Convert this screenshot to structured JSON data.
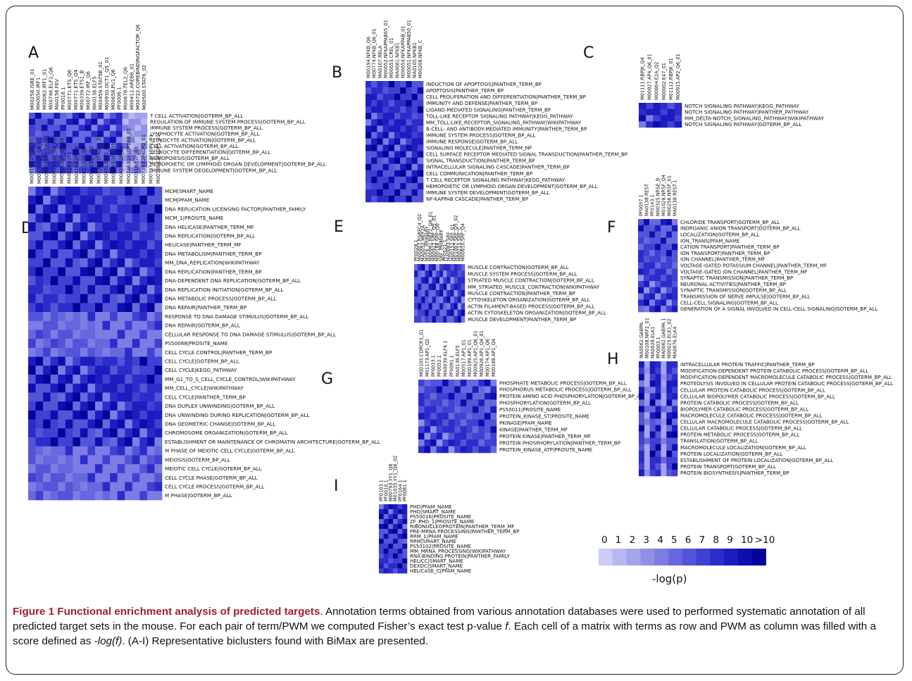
{
  "figure": {
    "caption_title": "Figure 1 Functional enrichment analysis of predicted targets",
    "caption_body_1": "Annotation terms obtained from various annotation databases were used to performed systematic annotation of all predicted target sets in the mouse. For each pair of term/PWM we computed Fisher’s exact test p-value ",
    "caption_f1": "f",
    "caption_body_2": ". Each cell of a matrix with terms as row and PWM as column was filled with a score defined as ",
    "caption_f2": "-log(f)",
    "caption_body_3": ". (A-I) Representative biclusters found with BiMax are presented."
  },
  "legend": {
    "ticks": [
      "0",
      "1",
      "2",
      "3",
      "4",
      "5",
      "6",
      "7",
      "8",
      "9",
      "10",
      ">10"
    ],
    "label": "-log(p)",
    "colors": [
      "#ccccf4",
      "#b8b8f0",
      "#a4a4ec",
      "#9090e8",
      "#7c7ce4",
      "#6868de",
      "#5454d8",
      "#4040d2",
      "#2c2ccb",
      "#1c1cc0",
      "#0e0eb0",
      "#04049c"
    ]
  },
  "chart_data": [
    {
      "type": "heatmap",
      "panel": "A",
      "columns": [
        "M00258.ISRE_01",
        "MA0050.IRF1",
        "M00062.IRF1_01",
        "M00746.ELF1_Q6",
        "MA0156.FEV",
        "PF0016.1",
        "M00771.ETS_Q6",
        "M00771.ETS_Q4",
        "M00339.ETS1_B",
        "M00772.IRF_Q6",
        "MA0136.ELF5",
        "M00459.STAT5B_01",
        "M00930.OCT1_Q5_01",
        "M00658.PU1_Q6",
        "PF0006.1",
        "M00678.TEL2_Q6",
        "M00412.AREB6_01",
        "M00722.COREBINDINGFACTOR_Q6",
        "M00500.STAT6_02"
      ],
      "rows": [
        "T CELL ACTIVATION|GOTERM_BP_ALL",
        "REGULATION OF IMMUNE SYSTEM PROCESS|GOTERM_BP_ALL",
        "IMMUNE SYSTEM PROCESS|GOTERM_BP_ALL",
        "LYMPHOCYTE ACTIVATION|GOTERM_BP_ALL",
        "LEUKOCYTE ACTIVATION|GOTERM_BP_ALL",
        "CELL ACTIVATION|GOTERM_BP_ALL",
        "LEUKOCYTE DIFFERENTIATION|GOTERM_BP_ALL",
        "HEMOPOIESIS|GOTERM_BP_ALL",
        "HEMOPOIETIC OR LYMPHOID ORGAN DEVELOPMENT|GOTERM_BP_ALL",
        "IMMUNE SYSTEM DEGELOPMENT|GOTERM_BP_ALL"
      ]
    },
    {
      "type": "heatmap",
      "panel": "B",
      "columns": [
        "M00194.NFKB_Q6",
        "M00774.NFKB_Q6_01",
        "MA0107.RELA",
        "M00052.NFKAPPAB65_01",
        "M00053.CREL_01",
        "MA0061.NFKB1",
        "M00054.NFKAPPAB_01",
        "M00051.NFKAPPAB50_01",
        "MA0105.NFKB1",
        "M00208.NFKB_C"
      ],
      "rows": [
        "INDUCTION OF APOPTOSIS|PANTHER_TERM_BP",
        "APOPTOSIS|PANTHER_TERM_BP",
        "CELL PROLIFERATION AND DIFFERENTIATION|PANTHER_TERM_BP",
        "IMMUNITY AND DEFENSE|PANTHER_TERM_BP",
        "LIGAND-MEDIATED SIGNALING|PANTHER_TERM_BP",
        "TOLL-LIKE RECEPTOR SIGNALING PATHWAY|KEGG_PATHWAY",
        "MM_TOLL-LIKE_RECEPTOR_SIGNALING_PATHWAY|WIKIPATHWAY",
        "B-CELL- AND ANTIBODY-MEDIATED IMMUNITY|PANTHER_TERM_BP",
        "IMMUNE SYSTEM PROCESS|GOTERM_BP_ALL",
        "IMMUNE RESPONSE|GOTERM_BP_ALL",
        "SIGNALING MOLECULE|PANTHER_TERM_MF",
        "CELL SURFACE RECEPTOR MEDIATED SIGNAL TRANSDUCTION|PANTHER_TERM_BP",
        "SIGNAL TRANSDUCTION|PANTHER_TERM_BP",
        "INTRACELLULAR SIGNALING CASCADE|PANTHER_TERM_BP",
        "CELL COMMUNICATION|PANTHER_TERM_BP",
        "T CELL RECEPTOR SIGNALING PATHWAY|KEGG_PATHWAY",
        "HEMOPOIETIC OR LYMPHOID ORGAN DEVELOPMENT|GOTERM_BP_ALL",
        "IMMUNE SYSTEM DEVELOPMENT|GOTERM_BP_ALL",
        "NF-KAPPAB CASCADE|PANTHER_TERM_BP"
      ]
    },
    {
      "type": "heatmap",
      "panel": "C",
      "columns": [
        "M01111.RBPJK_Q4",
        "M00927.AP4_Q6_01",
        "M00804.E2A_Q2",
        "M00002.E47_01",
        "M01112.RBPJK_01",
        "M00915.AP2_Q6_01"
      ],
      "rows": [
        "NOTCH SIGNALING PATHWAY|KEGG_PATHWAY",
        "NOTCH SIGNALING PATHWAY|PANTHER_PATHWAY",
        "MM_DELTA-NOTCH_SIGNALING_PATHWAY|WIKIPATHWAY",
        "NOTCH SIGNALING PATHWAY|GOTERM_BP_ALL"
      ]
    },
    {
      "type": "heatmap",
      "panel": "D",
      "columns": [
        "M00919.E2F_Q4_01",
        "M00920.E2F_Q6_01",
        "M00940.E2F1_Q6_01",
        "M00939.E2F_Q4_01",
        "M00918.E2F_Q3_01",
        "MA0024.E2F1",
        "M00426.E2F_Q4",
        "M00427.E2F_Q6",
        "M00050.E2F_Q2",
        "M00738.E2F4DP1_01",
        "M00431.E2F1_Q6",
        "M00428.E2F1_Q3",
        "M00427.E2F_Q6",
        "M00746.E2F1DP1RB_01",
        "M00516.E2F_03",
        "M00739.E2F4DP2_01",
        "M00737.E2F1DP1_01",
        "M00736.E2F1DP1_01"
      ],
      "rows": [
        "MCM|SMART_NAME",
        "MCM|PFAM_NAME",
        "DNA REPLICATION LICENSING FACTOR|PANTHER_FAMILY",
        "MCM_1|PROSITE_NAME",
        "DNA HELICASE|PANTHER_TERM_MF",
        "DNA REPLICATION|GOTERM_BP_ALL",
        "HELICASE|PANTHER_TERM_MF",
        "DNA METABOLISM|PANTHER_TERM_BP",
        "MM_DNA_REPLICATION|WIKIPATHWAY",
        "DNA REPLICATION|PANTHER_TERM_BP",
        "DNA-DEPENDENT DNA REPLICATION|GOTERM_BP_ALL",
        "DNA REPLICATION INITIATION|GOTERM_BP_ALL",
        "DNA METABOLIC PROCESS|GOTERM_BP_ALL",
        "DNA REPAIR|PANTHER_TERM_BP",
        "RESPONSE TO DNA DAMAGE STIMULUS|GOTERM_BP_ALL",
        "DNA REPAIR|GOTERM_BP_ALL",
        "CELLULAR RESPONSE TO DNA DAMAGE STIMULUS|GOTERM_BP_ALL",
        "PS50088|PROSITE_NAME",
        "CELL CYCLE CONTROL|PANTHER_TERM_BP",
        "CELL CYCLE|GOTERM_BP_ALL",
        "CELL CYCLE|KEGG_PATHWAY",
        "MM_G1_TO_S_CELL_CYCLE_CONTROL|WIKIPATHWAY",
        "MM_CELL_CYCLE|WIKIPATHWAY",
        "CELL CYCLE|PANTHER_TERM_BP",
        "DNA DUPLEX UNWINDING|GOTERM_BP_ALL",
        "DNA UNWINDING DURING REPLICATION|GOTERM_BP_ALL",
        "DNA GEOMETRIC CHANGE|GOTERM_BP_ALL",
        "CHROMOSOME ORGANIZATION|GOTERM_BP_ALL",
        "ESTABLISHMENT OR MAINTENANCE OF CHROMATIN ARCHITECTURE|GOTERM_BP_ALL",
        "M PHASE OF MEIOTIC CELL CYCLE|GOTERM_BP_ALL",
        "MEIOSIS|GOTERM_BP_ALL",
        "MEIOTIC CELL CYCLE|GOTERM_BP_ALL",
        "CELL CYCLE PHASE|GOTERM_BP_ALL",
        "CELL CYCLE PROCESS|GOTERM_BP_ALL",
        "M PHASE|GOTERM_BP_ALL"
      ]
    },
    {
      "type": "heatmap",
      "panel": "E",
      "columns": [
        "PF0028.1",
        "M00407.RSRFC4_Q2",
        "MA0052.MEF2A",
        "MYF6_PRIMARY",
        "M00941.MEF2_Q6_01",
        "M00922.SRF_Q5_01",
        "M00186.SRF_Q6",
        "SRF_PRIMARY",
        "PF0121.1",
        "MA0083.SRF",
        "M00152.SRF_01",
        "M01007.SRF_Q5_02",
        "M00215.SRF_C",
        "M00810.SRF_Q4"
      ],
      "rows": [
        "MUSCLE CONTRACTION|GOTERM_BP_ALL",
        "MUSCLE SYSTEM PROCESS|GOTERM_BP_ALL",
        "STRIATED MUSCLE CONTRACTION|GOTERM_BP_ALL",
        "MM_STRIATED_MUSCLE_CONTRACTION|WIKIPATHWAY",
        "MUSCLE CONTRACTION|PANTHER_TERM_BP",
        "CYTOSKELETON ORGANIZATION|GOTERM_BP_ALL",
        "ACTIN FILAMENT-BASED PROCESS|GOTERM_BP_ALL",
        "ACTIN CYTOSKELETON ORGANIZATION|GOTERM_BP_ALL",
        "MUSCLE DEVELOPMENT|PANTHER_TERM_BP"
      ]
    },
    {
      "type": "heatmap",
      "panel": "F",
      "columns": [
        "PF0057.1",
        "MA0138.REST",
        "PF0143.1",
        "M00325.NRSE_B",
        "M01028.NRSF_Q4",
        "M00256.NRSF_01",
        "MA0138.REST.1"
      ],
      "rows": [
        "CHLORIDE TRANSPORT|GOTERM_BP_ALL",
        "INORGANIC ANION TRANSPORT|GOTERM_BP_ALL",
        "LOCALIZATION|GOTERM_BP_ALL",
        "ION_TRANS|PFAM_NAME",
        "CATION TRANSPORT|PANTHER_TERM_BP",
        "ION TRANSPORT|PANTHER_TERM_BP",
        "ION CHANNEL|PANTHER_TERM_MF",
        "VOLTAGE-GATED POTASSIUM CHANNEL|PANTHER_TERM_MF",
        "VOLTAGE-GATED ION CHANNEL|PANTHER_TERM_MF",
        "SYNAPTIC TRANSMISSION|PANTHER_TERM_BP",
        "NEURONAL ACTIVITIES|PANTHER_TERM_BP",
        "SYNAPTIC TRANSMISSION|GOTERM_BP_ALL",
        "TRANSMISSION OF NERVE IMPULSE|GOTERM_BP_ALL",
        "CELL-CELL SIGNALING|GOTERM_BP_ALL",
        "GENERATION OF A SIGNAL INVOLVED IN CELL-CELL SIGNALING|GOTERM_BP_ALL"
      ]
    },
    {
      "type": "heatmap",
      "panel": "G",
      "columns": [
        "M00105.CDPCR3_01",
        "M01173.AP1_Q2",
        "PF0033.1",
        "PF0052.1",
        "MA0039.KLF4.1",
        "PF0091.1",
        "MA0136.ELF5",
        "M00517.AP1_01",
        "M00199.AP1_01",
        "M00925.AP1_Q6_01",
        "M00926.AP1_Q4_01",
        "M00174.AP1_Q6",
        "M00188.AP1_Q4"
      ],
      "rows": [
        "PHOSPHATE METABOLIC PROCESS|GOTERM_BP_ALL",
        "PHOSPHORUS METABOLIC PROCESS|GOTERM_BP_ALL",
        "PROTEIN AMINO ACID PHOSPHORYLATION|GOTERM_BP_ALL",
        "PHOSPHORYLATION|GOTERM_BP_ALL",
        "PS50011|PROSITE_NAME",
        "PROTEIN_KINASE_ST|PROSITE_NAME",
        "PKINASE|PFAM_NAME",
        "KINASE|PANTHER_TERM_MF",
        "PROTEIN KINASE|PANTHER_TERM_MF",
        "PROTEIN PHOSPHORYLATION|PANTHER_TERM_BP",
        "PROTEIN_KINASE_ATP|PROSITE_NAME"
      ]
    },
    {
      "type": "heatmap",
      "panel": "H",
      "columns": [
        "MA0062.GABPA",
        "M00108.NRF2_01",
        "MA0028.ELK1",
        "PF0003.1",
        "MA0062.GABPA.1",
        "M00025.ELK1_02",
        "MA0076.ELK4"
      ],
      "rows": [
        "INTRACELLULAR PROTEIN TRAFFIC|PANTHER_TERM_BP",
        "MODIFICATION-DEPENDENT PROTEIN CATABOLIC PROCESS|GOTERM_BP_ALL",
        "MODIFICATION-DEPENDENT MACROMOLECULE CATABOLIC PROCESS|GOTERM_BP_ALL",
        "PROTEOLYSIS INVOLVED IN CELLULAR PROTEIN CATABOLIC PROCESS|GOTERM_BP_ALL",
        "CELLULAR PROTEIN CATABOLIC PROCESS|GOTERM_BP_ALL",
        "CELLULAR BIOPOLYMER CATABOLIC PROCESS|GOTERM_BP_ALL",
        "PROTEIN CATABOLIC PROCESS|GOTERM_BP_ALL",
        "BIOPOLYMER CATABOLIC PROCESS|GOTERM_BP_ALL",
        "MACROMOLECULE CATABOLIC PROCESS|GOTERM_BP_ALL",
        "CELLULAR MACROMOLECULE CATABOLIC PROCESS|GOTERM_BP_ALL",
        "CELLULAR CATABOLIC PROCESS|GOTERM_BP_ALL",
        "PROTEIN METABOLIC PROCESS|GOTERM_BP_ALL",
        "TRANSLATION|GOTERM_BP_ALL",
        "MACROMOLECULE LOCALIZATION|GOTERM_BP_ALL",
        "PROTEIN LOCALIZATION|GOTERM_BP_ALL",
        "ESTABLISHMENT OF PROTEIN LOCALIZATION|GOTERM_BP_ALL",
        "PROTEIN TRANSPORT|GOTERM_BP_ALL",
        "PROTEIN BIOSYNTHESIS|PANTHER_TERM_BP"
      ]
    },
    {
      "type": "heatmap",
      "panel": "I",
      "columns": [
        "PF0103.1",
        "PF0010.1",
        "M00793.YY1_Q6",
        "M01035.YY1_Q6_02",
        "PF0164.1",
        "PF0081.1"
      ],
      "rows": [
        "PHD|PFAM_NAME",
        "PHD|SMART_NAME",
        "PS50016|PROSITE_NAME",
        "ZF_PHD_1|PROSITE_NAME",
        "RIBONUCLEOPROTEIN|PANTHER_TERM_MF",
        "PRE-MRNA PROCESSING|PANTHER_TERM_BP",
        "RRM_1|PFAM_NAME",
        "RRM|SMART_NAME",
        "PS50102|PROSITE_NAME",
        "MM_MRNA_PROCESSING|WIKIPATHWAY",
        "RNA-BINDING PROTEIN|PANTHER_FAMILY",
        "HELICC|SMART_NAME",
        "DEXDC|SMART_NAME",
        "HELICASE_C|PFAM_NAME"
      ]
    }
  ]
}
